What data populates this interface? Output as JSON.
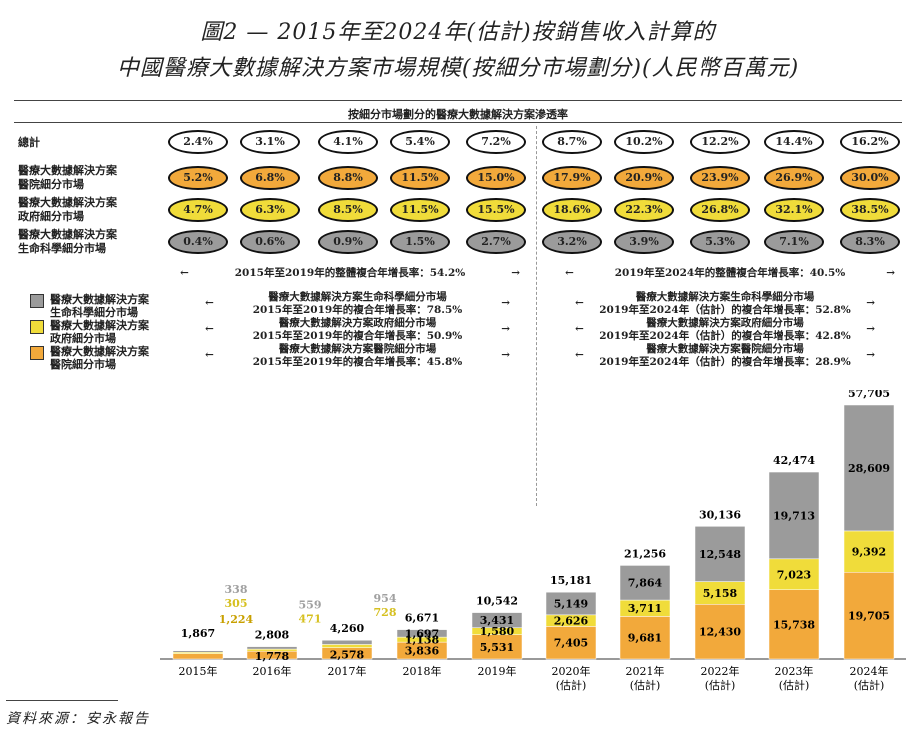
{
  "title_line1": "圖2 — 2015年至2024年(估計)按銷售收入計算的",
  "title_line2": "中國醫療大數據解決方案市場規模(按細分市場劃分)(人民幣百萬元)",
  "penetration_title": "按細分市場劃分的醫療大數據解決方案滲透率",
  "penetration_rows": [
    {
      "label": "總計",
      "fill": "#ffffff",
      "values": [
        "2.4%",
        "3.1%",
        "4.1%",
        "5.4%",
        "7.2%",
        "8.7%",
        "10.2%",
        "12.2%",
        "14.4%",
        "16.2%"
      ]
    },
    {
      "label": "醫療大數據解決方案\n醫院細分市場",
      "fill": "#f2a93b",
      "values": [
        "5.2%",
        "6.8%",
        "8.8%",
        "11.5%",
        "15.0%",
        "17.9%",
        "20.9%",
        "23.9%",
        "26.9%",
        "30.0%"
      ]
    },
    {
      "label": "醫療大數據解決方案\n政府細分市場",
      "fill": "#f0dc3a",
      "values": [
        "4.7%",
        "6.3%",
        "8.5%",
        "11.5%",
        "15.5%",
        "18.6%",
        "22.3%",
        "26.8%",
        "32.1%",
        "38.5%"
      ]
    },
    {
      "label": "醫療大數據解決方案\n生命科學細分市場",
      "fill": "#9b9b9b",
      "values": [
        "0.4%",
        "0.6%",
        "0.9%",
        "1.5%",
        "2.7%",
        "3.2%",
        "3.9%",
        "5.3%",
        "7.1%",
        "8.3%"
      ]
    }
  ],
  "cagr": {
    "overall_left": "2015年至2019年的整體複合年增長率：54.2%",
    "overall_right": "2019年至2024年的整體複合年增長率：40.5%",
    "left_lines": [
      "醫療大數據解決方案生命科學細分市場\n2015年至2019年的複合年增長率：78.5%",
      "醫療大數據解決方案政府細分市場\n2015年至2019年的複合年增長率：50.9%",
      "醫療大數據解決方案醫院細分市場\n2015年至2019年的複合年增長率：45.8%"
    ],
    "right_lines": [
      "醫療大數據解決方案生命科學細分市場\n2019年至2024年（估計）的複合年增長率：52.8%",
      "醫療大數據解決方案政府細分市場\n2019年至2024年（估計）的複合年增長率：42.8%",
      "醫療大數據解決方案醫院細分市場\n2019年至2024年（估計）的複合年增長率：28.9%"
    ]
  },
  "legend": [
    {
      "label": "醫療大數據解決方案\n生命科學細分市場",
      "color": "#9b9b9b"
    },
    {
      "label": "醫療大數據解決方案\n政府細分市場",
      "color": "#f0dc3a"
    },
    {
      "label": "醫療大數據解決方案\n醫院細分市場",
      "color": "#f2a93b"
    }
  ],
  "chart_data": {
    "type": "bar",
    "stacked": true,
    "categories": [
      "2015年",
      "2016年",
      "2017年",
      "2018年",
      "2019年",
      "2020年\n(估計)",
      "2021年\n(估計)",
      "2022年\n(估計)",
      "2023年\n(估計)",
      "2024年\n(估計)"
    ],
    "series": [
      {
        "name": "醫療大數據解決方案醫院細分市場",
        "color": "#f2a93b",
        "values": [
          1224,
          1778,
          2578,
          3836,
          5531,
          7405,
          9681,
          12430,
          15738,
          19705
        ]
      },
      {
        "name": "醫療大數據解決方案政府細分市場",
        "color": "#f0dc3a",
        "values": [
          305,
          471,
          728,
          1138,
          1580,
          2626,
          3711,
          5158,
          7023,
          9392
        ]
      },
      {
        "name": "醫療大數據解決方案生命科學細分市場",
        "color": "#9b9b9b",
        "values": [
          338,
          559,
          954,
          1697,
          3431,
          5149,
          7864,
          12548,
          19713,
          28609
        ]
      }
    ],
    "totals": [
      1867,
      2808,
      4260,
      6671,
      10542,
      15181,
      21256,
      30136,
      42474,
      57705
    ],
    "value_labels": [
      [
        "1,224",
        "305",
        "338"
      ],
      [
        "1,778",
        "471",
        "559"
      ],
      [
        "2,578",
        "728",
        "954"
      ],
      [
        "3,836",
        "1,138",
        "1,697"
      ],
      [
        "5,531",
        "1,580",
        "3,431"
      ],
      [
        "7,405",
        "2,626",
        "5,149"
      ],
      [
        "9,681",
        "3,711",
        "7,864"
      ],
      [
        "12,430",
        "5,158",
        "12,548"
      ],
      [
        "15,738",
        "7,023",
        "19,713"
      ],
      [
        "19,705",
        "9,392",
        "28,609"
      ]
    ],
    "total_labels": [
      "1,867",
      "2,808",
      "4,260",
      "6,671",
      "10,542",
      "15,181",
      "21,256",
      "30,136",
      "42,474",
      "57,705"
    ],
    "outside_labels": [
      true,
      true,
      true,
      false,
      false,
      false,
      false,
      false,
      false,
      false
    ],
    "ylim": [
      0,
      57705
    ]
  },
  "source": "資料來源：安永報告"
}
